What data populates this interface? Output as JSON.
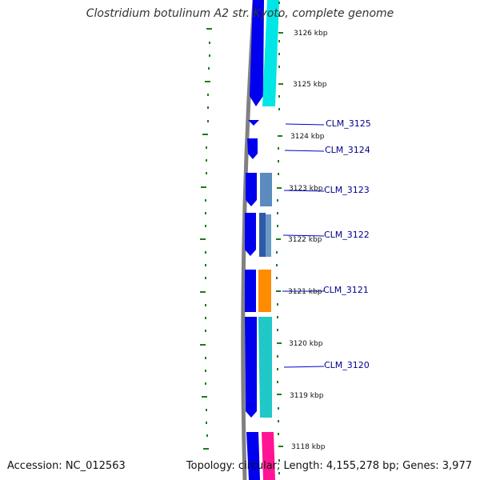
{
  "title": "Clostridium botulinum A2 str. Kyoto, complete genome",
  "accession": "Accession: NC_012563",
  "summary": "Topology: circular; Length: 4,155,278 bp; Genes: 3,977",
  "kbp_ticks": [
    {
      "label": "3126 kbp",
      "kbp": 3126
    },
    {
      "label": "3125 kbp",
      "kbp": 3125
    },
    {
      "label": "3124 kbp",
      "kbp": 3124
    },
    {
      "label": "3123 kbp",
      "kbp": 3123
    },
    {
      "label": "3122 kbp",
      "kbp": 3122
    },
    {
      "label": "3121 kbp",
      "kbp": 3121
    },
    {
      "label": "3120 kbp",
      "kbp": 3120
    },
    {
      "label": "3119 kbp",
      "kbp": 3119
    },
    {
      "label": "3118 kbp",
      "kbp": 3118
    }
  ],
  "genes": [
    {
      "label": "CLM_3125"
    },
    {
      "label": "CLM_3124"
    },
    {
      "label": "CLM_3123"
    },
    {
      "label": "CLM_3122"
    },
    {
      "label": "CLM_3121"
    },
    {
      "label": "CLM_3120"
    }
  ],
  "colors": {
    "backbone": "#808080",
    "cds": "#0000ee",
    "tick": "#1a7f1a",
    "cyan": "#00e5e5",
    "steel": "#5b8bbf",
    "orange": "#ff8c00",
    "teal": "#20c8c8",
    "pink": "#ff1493"
  }
}
